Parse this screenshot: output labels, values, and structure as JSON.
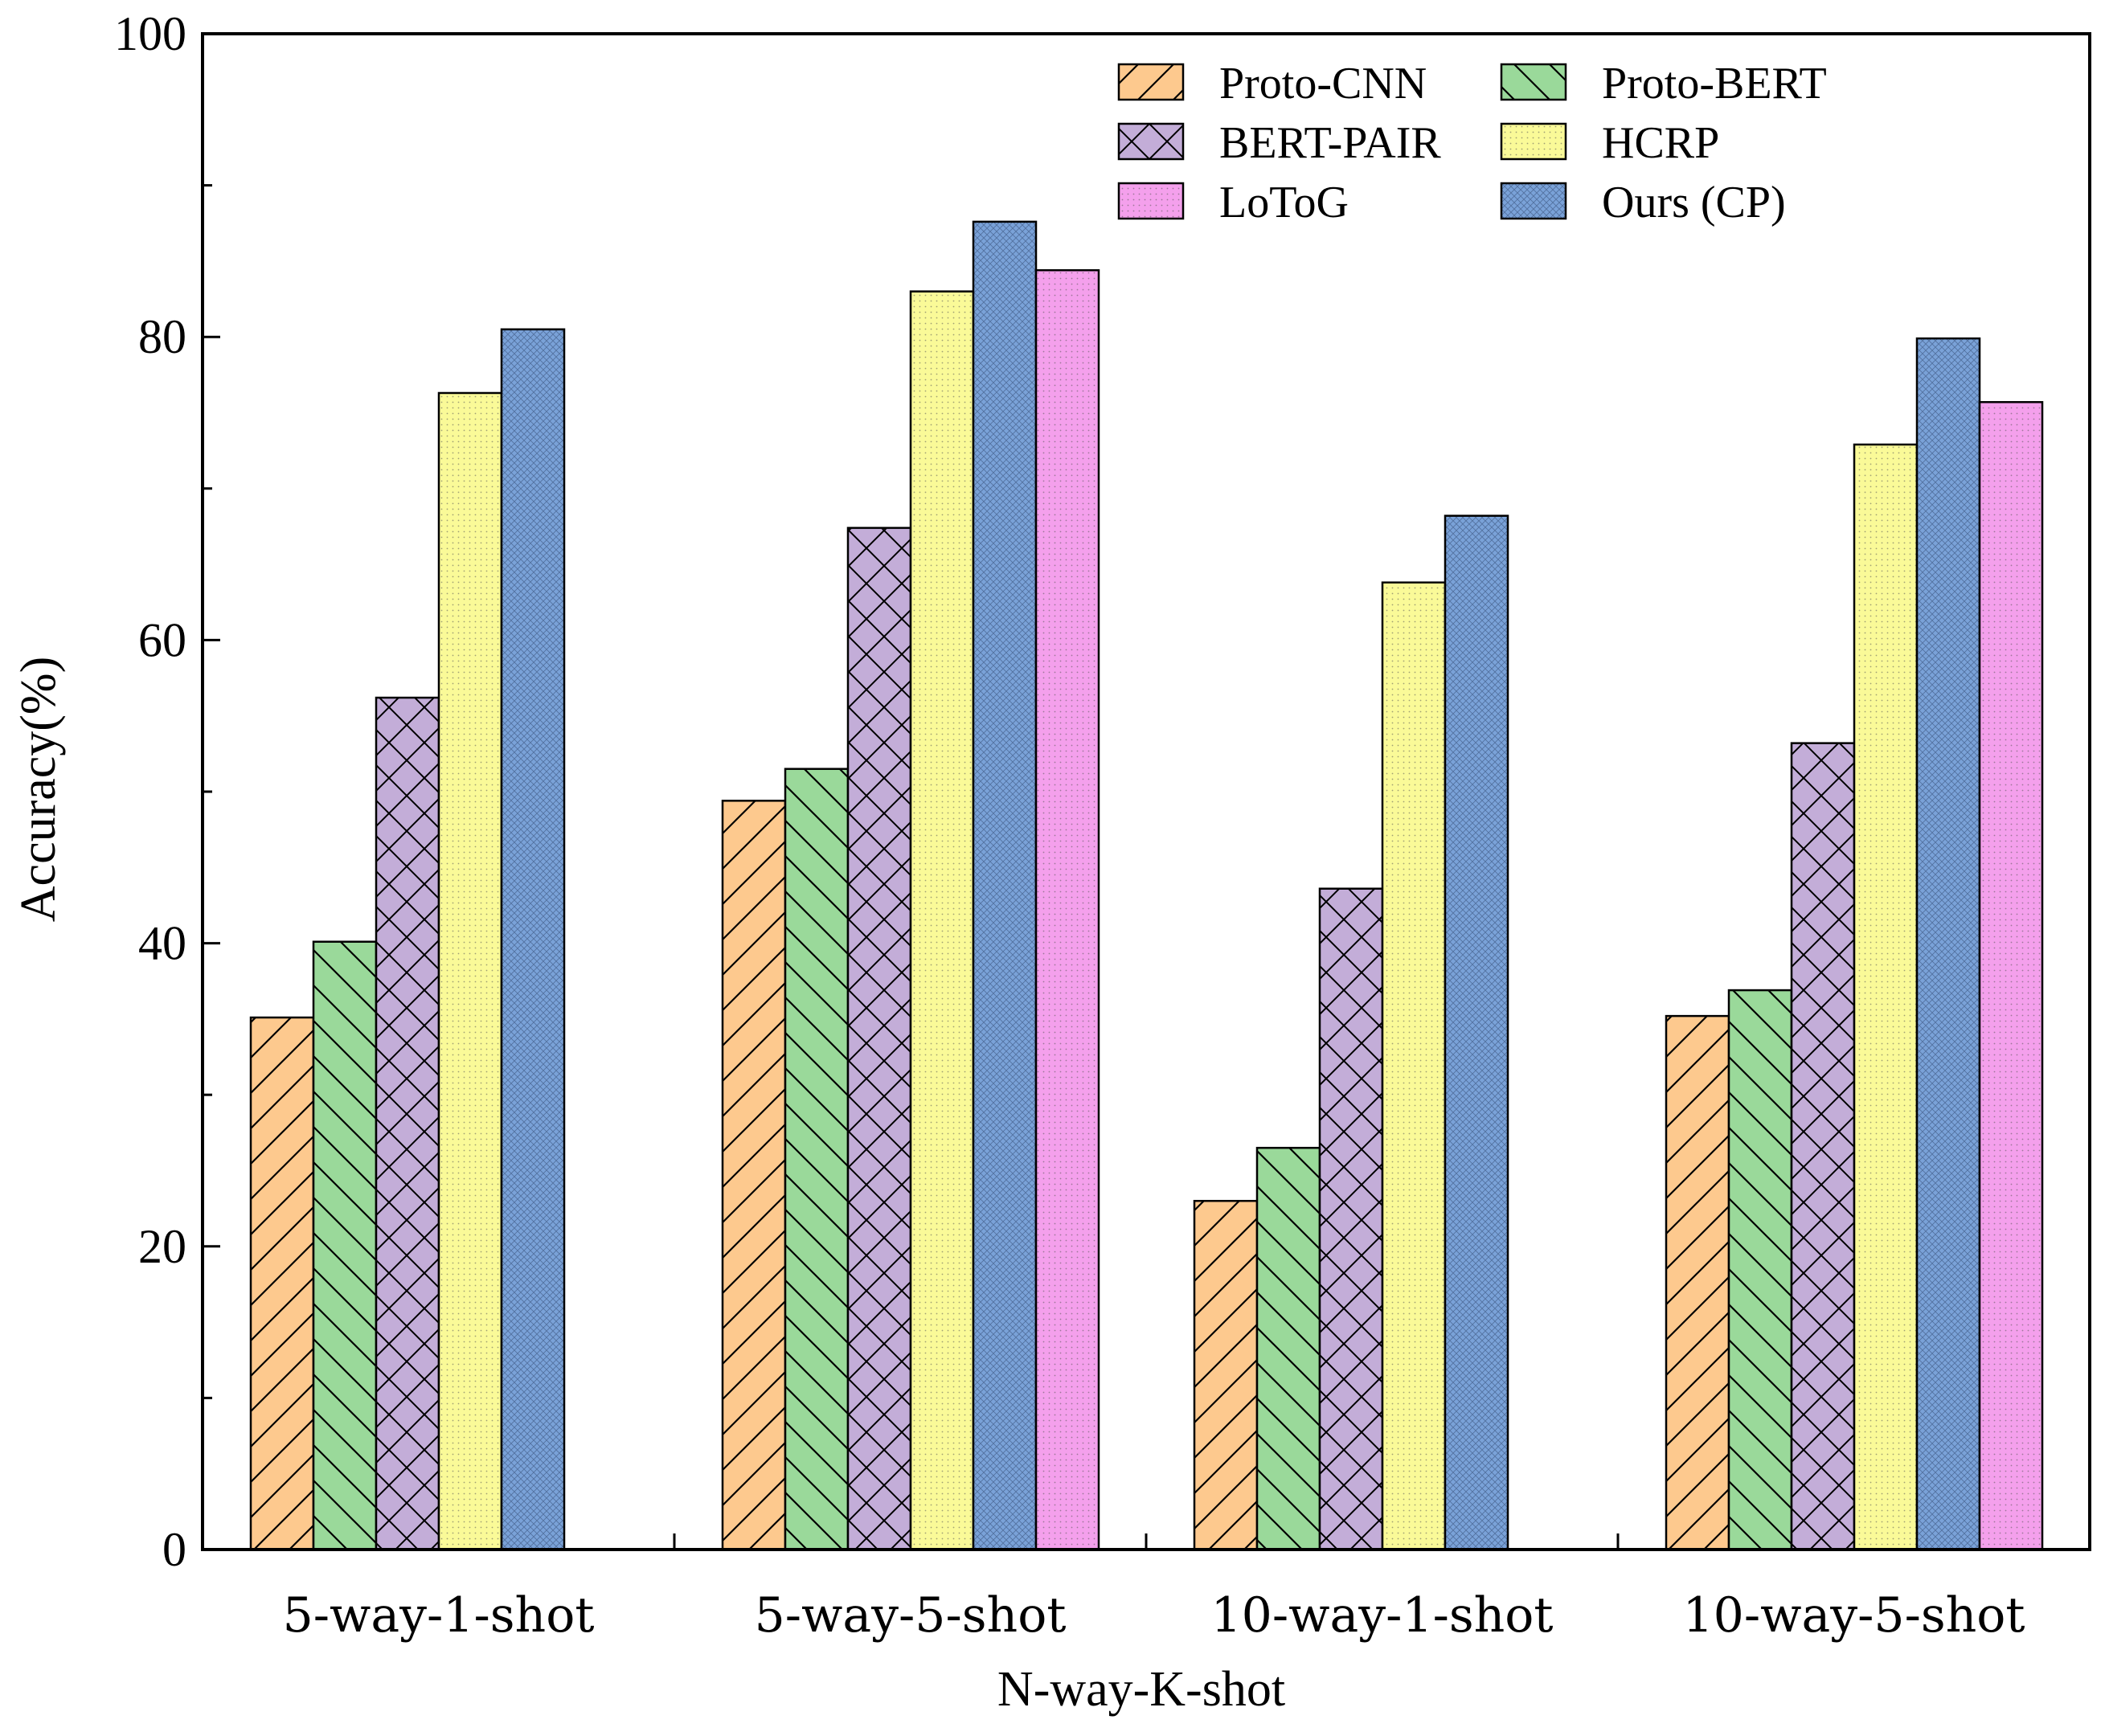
{
  "chart_data": {
    "type": "bar",
    "title": "",
    "xlabel": "N-way-K-shot",
    "ylabel": "Accuracy(%)",
    "ylim": [
      0,
      100
    ],
    "yticks": [
      0,
      20,
      40,
      60,
      80,
      100
    ],
    "yticks_label": [
      "0",
      "20",
      "40",
      "60",
      "80",
      "100"
    ],
    "grid": false,
    "legend_position": "top-right",
    "categories": [
      "5-way-1-shot",
      "5-way-5-shot",
      "10-way-1-shot",
      "10-way-5-shot"
    ],
    "series": [
      {
        "name": "Proto-CNN",
        "color": "#fdc98e",
        "pattern": "diag-forward",
        "values": [
          35.1,
          49.4,
          23.0,
          35.2
        ]
      },
      {
        "name": "Proto-BERT",
        "color": "#9ad99a",
        "pattern": "diag-back",
        "values": [
          40.1,
          51.5,
          26.5,
          36.9
        ]
      },
      {
        "name": "BERT-PAIR",
        "color": "#c3add8",
        "pattern": "crosshatch",
        "values": [
          56.2,
          67.4,
          43.6,
          53.2
        ]
      },
      {
        "name": "HCRP",
        "color": "#fafa98",
        "pattern": "dots",
        "values": [
          76.3,
          83.0,
          63.8,
          72.9
        ]
      },
      {
        "name": "Ours (CP)",
        "color": "#7aa2d8",
        "pattern": "fine-grid",
        "values": [
          80.5,
          87.6,
          68.2,
          79.9
        ]
      },
      {
        "name": "LoToG",
        "color": "#f4a0ec",
        "pattern": "dots",
        "values": [
          null,
          84.4,
          null,
          75.7
        ]
      }
    ],
    "legend_order": [
      "Proto-CNN",
      "Proto-BERT",
      "BERT-PAIR",
      "HCRP",
      "LoToG",
      "Ours (CP)"
    ]
  }
}
